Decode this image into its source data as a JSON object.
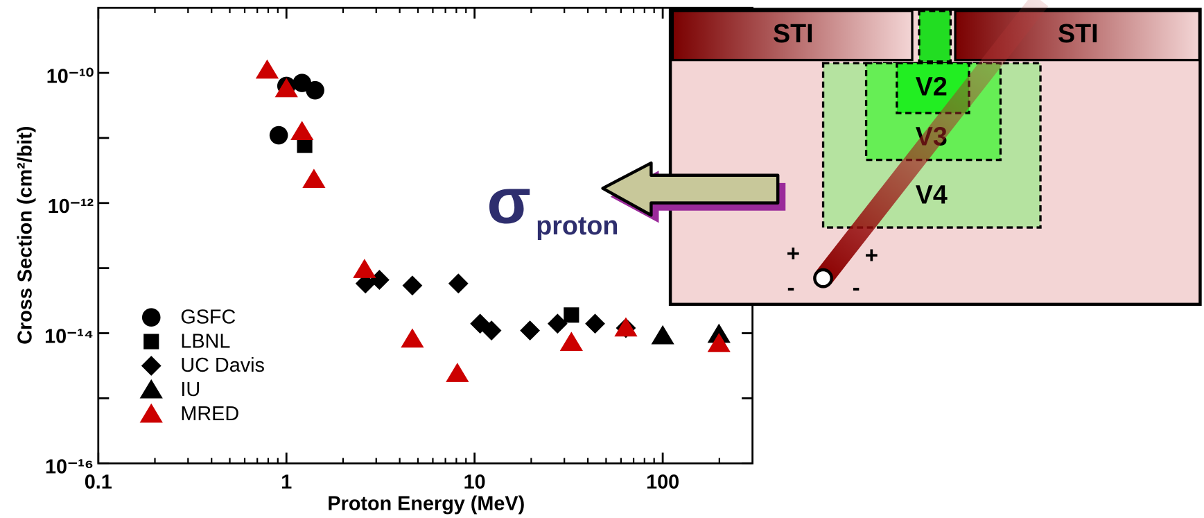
{
  "chart_data": {
    "type": "scatter",
    "x_label": "Proton Energy (MeV)",
    "y_label": "Cross Section (cm²/bit)",
    "xlog": true,
    "ylog": true,
    "xlim": [
      0.1,
      300
    ],
    "ylim": [
      1e-16,
      1e-09
    ],
    "xticks": [
      0.1,
      1,
      10,
      100
    ],
    "xminor_ticks": [
      0.2,
      0.3,
      0.4,
      0.5,
      0.6,
      0.7,
      0.8,
      0.9,
      2,
      3,
      4,
      5,
      6,
      7,
      8,
      9,
      20,
      30,
      40,
      50,
      60,
      70,
      80,
      90,
      200
    ],
    "yticks": [
      {
        "value": 1e-16,
        "label": "10⁻¹⁶"
      },
      {
        "value": 1e-14,
        "label": "10⁻¹⁴"
      },
      {
        "value": 1e-12,
        "label": "10⁻¹²"
      },
      {
        "value": 1e-10,
        "label": "10⁻¹⁰"
      }
    ],
    "yminor_ticks": [
      1e-15,
      1e-13,
      1e-11
    ],
    "legend": "lower left",
    "series": [
      {
        "name": "GSFC",
        "color": "#000000",
        "marker": "circle",
        "x": [
          1.0,
          1.21,
          1.42,
          0.91
        ],
        "values": [
          6.3e-11,
          7e-11,
          5.4e-11,
          1.1e-11
        ]
      },
      {
        "name": "LBNL",
        "color": "#000000",
        "marker": "square",
        "x": [
          1.25,
          32.7
        ],
        "values": [
          7.7e-12,
          1.9e-14
        ]
      },
      {
        "name": "UC Davis",
        "color": "#000000",
        "marker": "diamond",
        "x": [
          2.63,
          3.12,
          4.67,
          8.2,
          10.7,
          12.3,
          19.7,
          27.6,
          43.7,
          63.7
        ],
        "values": [
          5.8e-14,
          6.6e-14,
          5.4e-14,
          5.8e-14,
          1.4e-14,
          1.1e-14,
          1.1e-14,
          1.4e-14,
          1.4e-14,
          1.2e-14
        ]
      },
      {
        "name": "IU",
        "color": "#000000",
        "marker": "triangle",
        "x": [
          100,
          199
        ],
        "values": [
          9.1e-15,
          9.6e-15
        ]
      },
      {
        "name": "MRED",
        "color": "#cc0000",
        "marker": "triangle",
        "x": [
          0.79,
          1.0,
          1.21,
          1.4,
          2.6,
          4.67,
          8.1,
          32.7,
          63.7,
          199
        ],
        "values": [
          1.1e-10,
          5.7e-11,
          1.25e-11,
          2.3e-12,
          9.5e-14,
          8.1e-15,
          2.4e-15,
          7.2e-15,
          1.2e-14,
          6.9e-15
        ]
      }
    ]
  },
  "diagram": {
    "sti_left": "STI",
    "sti_right": "STI",
    "v2": "V2",
    "v3": "V3",
    "v4": "V4",
    "sigma": "σ",
    "sigma_sub": "proton",
    "plus_left": "+",
    "plus_right": "+",
    "minus_left": "-",
    "minus_right": "-"
  }
}
